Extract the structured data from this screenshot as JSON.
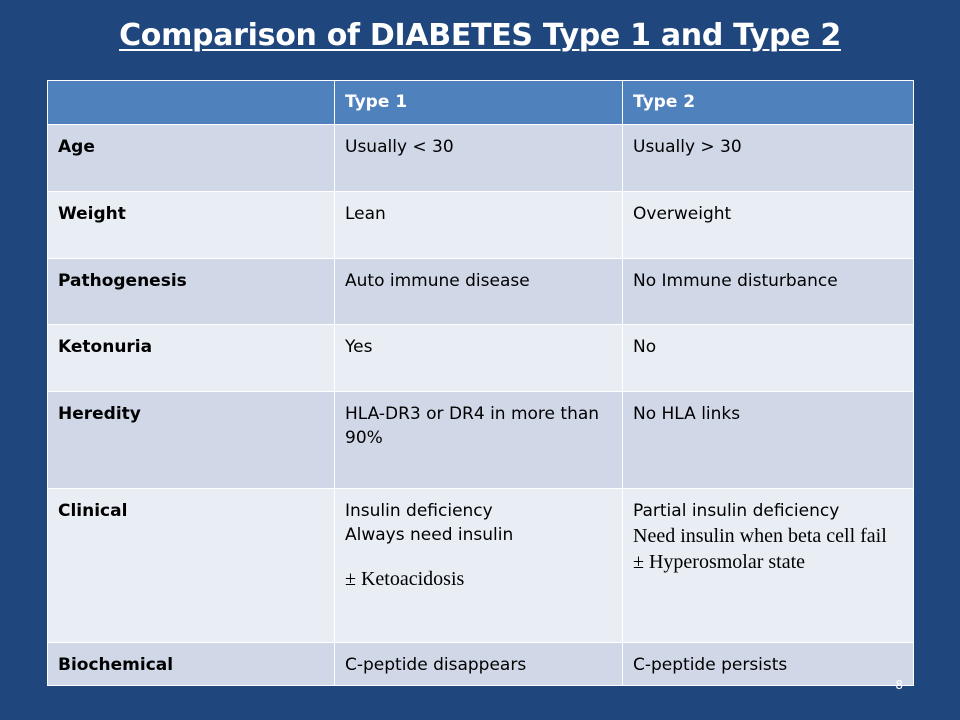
{
  "title": "Comparison of DIABETES Type 1 and Type 2",
  "table": {
    "headers": [
      "",
      "Type 1",
      "Type 2"
    ],
    "rows": [
      {
        "label": "Age",
        "type1": "Usually < 30",
        "type2": "Usually > 30"
      },
      {
        "label": "Weight",
        "type1": "Lean",
        "type2": "Overweight"
      },
      {
        "label": "Pathogenesis",
        "type1": "Auto immune disease",
        "type2": "No Immune disturbance"
      },
      {
        "label": "Ketonuria",
        "type1": "Yes",
        "type2": "No"
      },
      {
        "label": "Heredity",
        "type1": "HLA-DR3 or DR4 in more than 90%",
        "type2": "No HLA links"
      },
      {
        "label": "Clinical",
        "type1_lines": [
          "Insulin deficiency",
          "Always need insulin",
          "± Ketoacidosis"
        ],
        "type2_lines": [
          "Partial insulin deficiency",
          "Need insulin when beta cell fail",
          "± Hyperosmolar state"
        ]
      },
      {
        "label": "Biochemical",
        "type1": "C-peptide disappears",
        "type2": "C-peptide persists"
      }
    ]
  },
  "slide_number": "8"
}
